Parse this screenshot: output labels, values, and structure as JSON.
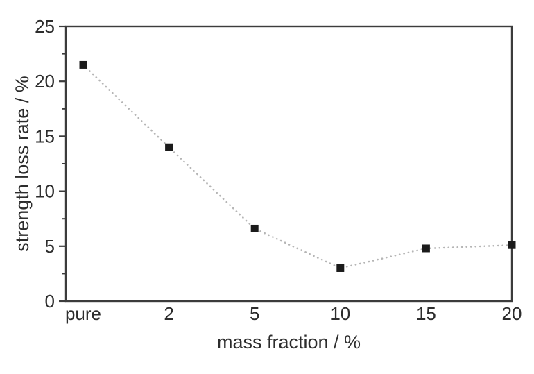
{
  "chart_data": {
    "type": "line",
    "title": "",
    "categories": [
      "pure",
      "2",
      "5",
      "10",
      "15",
      "20"
    ],
    "values": [
      21.5,
      14.0,
      6.6,
      3.0,
      4.8,
      5.1
    ],
    "series_name": "strength loss rate",
    "xlabel": "mass fraction / %",
    "ylabel": "strength loss rate / %",
    "ylim": [
      0,
      25
    ],
    "yticks": [
      0,
      5,
      10,
      15,
      20,
      25
    ],
    "minor_ytick_step": 2.5,
    "grid": false,
    "legend_position": "none",
    "marker": "square",
    "marker_size_px": 11,
    "marker_color": "#1b1b1b",
    "line_color": "#b5b5b5",
    "line_style": "dotted",
    "axis_color": "#3c3c3c",
    "text_color": "#2d2d2d",
    "background_color": "#ffffff"
  }
}
